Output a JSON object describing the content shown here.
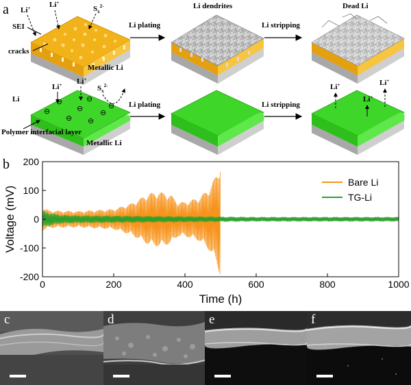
{
  "panel_a": {
    "label": "a",
    "top_row": {
      "labels": {
        "li_ion_1": "Li",
        "li_ion_1_sup": "+",
        "li_ion_2": "Li",
        "li_ion_2_sup": "+",
        "sulfide": "S",
        "sulfide_sub": "x",
        "sulfide_sup": "2-",
        "sei": "SEI",
        "cracks": "cracks",
        "metallic_li": "Metallic Li",
        "arrow_1": "Li plating",
        "dendrites": "Li dendrites",
        "arrow_2": "Li stripping",
        "dead_li": "Dead Li"
      }
    },
    "bottom_row": {
      "labels": {
        "li": "Li",
        "li_ion_1": "Li",
        "li_ion_1_sup": "+",
        "li_ion_2": "Li",
        "li_ion_2_sup": "+",
        "sulfide": "S",
        "sulfide_sub": "x",
        "sulfide_sup": "2-",
        "minus_sign": "⊖",
        "polymer_layer": "Polymer interfacial layer",
        "metallic_li": "Metallic Li",
        "arrow_1": "Li plating",
        "arrow_2": "Li stripping",
        "out_ion_1": "Li",
        "out_ion_1_sup": "+",
        "out_ion_2": "Li",
        "out_ion_2_sup": "+",
        "out_ion_3": "Li",
        "out_ion_3_sup": "+"
      }
    },
    "colors": {
      "sei": "#f2b21a",
      "polymer": "#3fd62a",
      "metal": "#c4c4c4"
    }
  },
  "panel_b": {
    "label": "b",
    "chart_data": {
      "type": "line",
      "xlabel": "Time (h)",
      "ylabel": "Voltage (mV)",
      "xlim": [
        0,
        1000
      ],
      "ylim": [
        -200,
        200
      ],
      "xticks": [
        "0",
        "200",
        "400",
        "600",
        "800",
        "1000"
      ],
      "yticks": [
        "200",
        "100",
        "0",
        "-100",
        "-200"
      ],
      "legend_position": "top-right",
      "grid": false,
      "series": [
        {
          "name": "Bare Li",
          "color": "#f7941d",
          "envelope_time": [
            0,
            20,
            100,
            200,
            250,
            300,
            330,
            360,
            380,
            400,
            440,
            470,
            490,
            500
          ],
          "envelope_mV": [
            40,
            30,
            28,
            35,
            55,
            90,
            95,
            85,
            60,
            60,
            75,
            110,
            160,
            200
          ],
          "end_time": 500
        },
        {
          "name": "TG-Li",
          "color": "#2ca02c",
          "envelope_time": [
            0,
            10,
            50,
            100,
            200,
            400,
            600,
            800,
            1000
          ],
          "envelope_mV": [
            30,
            25,
            15,
            13,
            12,
            10,
            8,
            8,
            8
          ],
          "end_time": 1000
        }
      ]
    }
  },
  "panel_c": {
    "label": "c"
  },
  "panel_d": {
    "label": "d"
  },
  "panel_e": {
    "label": "e"
  },
  "panel_f": {
    "label": "f"
  }
}
